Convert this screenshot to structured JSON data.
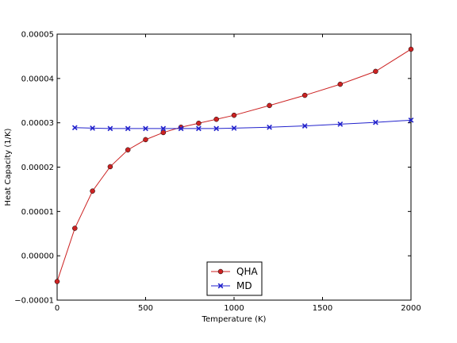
{
  "chart_data": {
    "type": "line",
    "xlabel": "Temperature (K)",
    "ylabel": "Heat Capacity (1/K)",
    "xlim": [
      0,
      2000
    ],
    "ylim": [
      -1e-05,
      5e-05
    ],
    "xticks": [
      0,
      500,
      1000,
      1500,
      2000
    ],
    "xtick_labels": [
      "0",
      "500",
      "1000",
      "1500",
      "2000"
    ],
    "yticks": [
      -1e-05,
      0,
      1e-05,
      2e-05,
      3e-05,
      4e-05,
      5e-05
    ],
    "ytick_labels": [
      "−0.00001",
      "0.00000",
      "0.00001",
      "0.00002",
      "0.00003",
      "0.00004",
      "0.00005"
    ],
    "grid": false,
    "legend_position": "bottom-center",
    "series": [
      {
        "name": "QHA",
        "color": "#cc2222",
        "marker": "circle",
        "x": [
          0,
          100,
          200,
          300,
          400,
          500,
          600,
          700,
          800,
          900,
          1000,
          1200,
          1400,
          1600,
          1800,
          2000
        ],
        "values": [
          -5.8e-06,
          6.2e-06,
          1.46e-05,
          2.01e-05,
          2.39e-05,
          2.62e-05,
          2.78e-05,
          2.9e-05,
          2.99e-05,
          3.08e-05,
          3.17e-05,
          3.39e-05,
          3.62e-05,
          3.87e-05,
          4.16e-05,
          4.66e-05
        ]
      },
      {
        "name": "MD",
        "color": "#2222cc",
        "marker": "x",
        "x": [
          100,
          200,
          300,
          400,
          500,
          600,
          700,
          800,
          900,
          1000,
          1200,
          1400,
          1600,
          1800,
          2000
        ],
        "values": [
          2.89e-05,
          2.88e-05,
          2.87e-05,
          2.87e-05,
          2.87e-05,
          2.87e-05,
          2.87e-05,
          2.87e-05,
          2.87e-05,
          2.88e-05,
          2.9e-05,
          2.93e-05,
          2.97e-05,
          3.01e-05,
          3.06e-05
        ]
      }
    ]
  }
}
